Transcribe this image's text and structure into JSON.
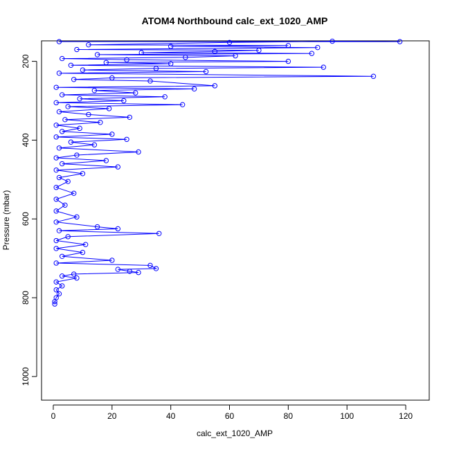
{
  "chart_data": {
    "type": "scatter",
    "title": "ATOM4 Northbound calc_ext_1020_AMP",
    "xlabel": "calc_ext_1020_AMP",
    "ylabel": "Pressure (mbar)",
    "xlim": [
      -4,
      128
    ],
    "ylim": [
      1060,
      148
    ],
    "y_reversed": true,
    "x_ticks": [
      0,
      20,
      40,
      60,
      80,
      100,
      120
    ],
    "x_tick_labels": [
      "0",
      "20",
      "40",
      "60",
      "80",
      "100",
      "120"
    ],
    "y_ticks": [
      200,
      400,
      600,
      800,
      1000
    ],
    "y_tick_labels": [
      "200",
      "400",
      "600",
      "800",
      "1000"
    ],
    "grid": false,
    "legend": "none",
    "marker": "open-circle",
    "connected_lines": true,
    "series_color": "#0000ff",
    "series": [
      {
        "points": [
          [
            2,
            150
          ],
          [
            118,
            150
          ],
          [
            95,
            149
          ],
          [
            60,
            152
          ],
          [
            12,
            158
          ],
          [
            80,
            160
          ],
          [
            40,
            162
          ],
          [
            90,
            165
          ],
          [
            8,
            170
          ],
          [
            70,
            172
          ],
          [
            55,
            175
          ],
          [
            30,
            178
          ],
          [
            88,
            180
          ],
          [
            15,
            183
          ],
          [
            62,
            186
          ],
          [
            45,
            190
          ],
          [
            3,
            193
          ],
          [
            25,
            196
          ],
          [
            80,
            200
          ],
          [
            18,
            203
          ],
          [
            40,
            206
          ],
          [
            6,
            210
          ],
          [
            92,
            215
          ],
          [
            35,
            218
          ],
          [
            10,
            222
          ],
          [
            52,
            226
          ],
          [
            2,
            230
          ],
          [
            109,
            238
          ],
          [
            20,
            242
          ],
          [
            7,
            246
          ],
          [
            33,
            250
          ],
          [
            55,
            262
          ],
          [
            1,
            266
          ],
          [
            48,
            270
          ],
          [
            14,
            274
          ],
          [
            28,
            280
          ],
          [
            3,
            285
          ],
          [
            38,
            290
          ],
          [
            9,
            295
          ],
          [
            24,
            300
          ],
          [
            1,
            305
          ],
          [
            44,
            310
          ],
          [
            5,
            315
          ],
          [
            19,
            320
          ],
          [
            2,
            328
          ],
          [
            12,
            335
          ],
          [
            26,
            342
          ],
          [
            4,
            348
          ],
          [
            16,
            355
          ],
          [
            1,
            362
          ],
          [
            9,
            370
          ],
          [
            3,
            378
          ],
          [
            20,
            385
          ],
          [
            1,
            392
          ],
          [
            25,
            398
          ],
          [
            6,
            405
          ],
          [
            14,
            412
          ],
          [
            2,
            420
          ],
          [
            29,
            430
          ],
          [
            8,
            438
          ],
          [
            1,
            445
          ],
          [
            18,
            452
          ],
          [
            3,
            460
          ],
          [
            22,
            468
          ],
          [
            1,
            476
          ],
          [
            10,
            485
          ],
          [
            2,
            495
          ],
          [
            5,
            505
          ],
          [
            1,
            520
          ],
          [
            7,
            535
          ],
          [
            1,
            550
          ],
          [
            4,
            565
          ],
          [
            1,
            580
          ],
          [
            8,
            595
          ],
          [
            1,
            608
          ],
          [
            15,
            620
          ],
          [
            22,
            625
          ],
          [
            2,
            630
          ],
          [
            36,
            637
          ],
          [
            5,
            645
          ],
          [
            1,
            655
          ],
          [
            11,
            665
          ],
          [
            1,
            675
          ],
          [
            10,
            685
          ],
          [
            3,
            695
          ],
          [
            20,
            705
          ],
          [
            1,
            712
          ],
          [
            33,
            718
          ],
          [
            35,
            726
          ],
          [
            22,
            728
          ],
          [
            26,
            733
          ],
          [
            29,
            736
          ],
          [
            7,
            740
          ],
          [
            3,
            745
          ],
          [
            8,
            750
          ],
          [
            1,
            760
          ],
          [
            3,
            770
          ],
          [
            1,
            780
          ],
          [
            2,
            790
          ],
          [
            1,
            800
          ],
          [
            0.5,
            810
          ],
          [
            0.5,
            816
          ]
        ]
      }
    ]
  }
}
